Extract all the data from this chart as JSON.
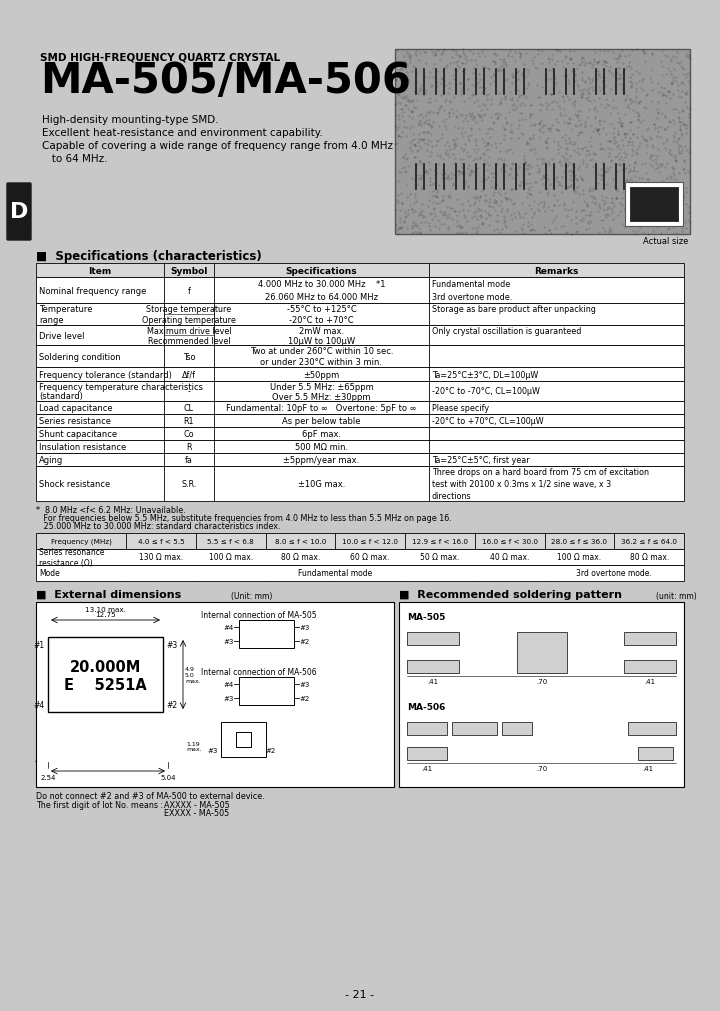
{
  "bg_color": "#c8c8c8",
  "title_sub": "SMD HIGH-FREQUENCY QUARTZ CRYSTAL",
  "title_main": "MA-505/MA-506",
  "bullets": [
    "High-density mounting-type SMD.",
    "Excellent heat-resistance and environment capability.",
    "Capable of covering a wide range of frequency range from 4.0 MHz",
    "   to 64 MHz."
  ],
  "actual_size_label": "Actual size",
  "spec_title": "Specifications (characteristics)",
  "spec_headers": [
    "Item",
    "Symbol",
    "Specifications",
    "Remarks"
  ],
  "freq_note_lines": [
    "*  8.0 MHz <f< 6.2 MHz: Unavailable.",
    "   For frequencies below 5.5 MHz, substitute frequencies from 4.0 MHz to less than 5.5 MHz on page 16.",
    "   25.000 MHz to 30.000 MHz: standard characteristics index."
  ],
  "freq_table_headers": [
    "Frequency (MHz)",
    "4.0 ≤ f < 5.5",
    "5.5 ≤ f < 6.8",
    "8.0 ≤ f < 10.0",
    "10.0 ≤ f < 12.0",
    "12.9 ≤ f < 16.0",
    "16.0 ≤ f < 30.0",
    "28.0 ≤ f ≤ 36.0",
    "36.2 ≤ f ≤ 64.0"
  ],
  "freq_res_vals": [
    "130 Ω max.",
    "100 Ω max.",
    "80 Ω max.",
    "60 Ω max.",
    "50 Ω max.",
    "40 Ω max.",
    "100 Ω max.",
    "80 Ω max."
  ],
  "ext_dim_title": "External dimensions",
  "solder_title": "Recommended soldering pattern",
  "page_num": "- 21 -"
}
